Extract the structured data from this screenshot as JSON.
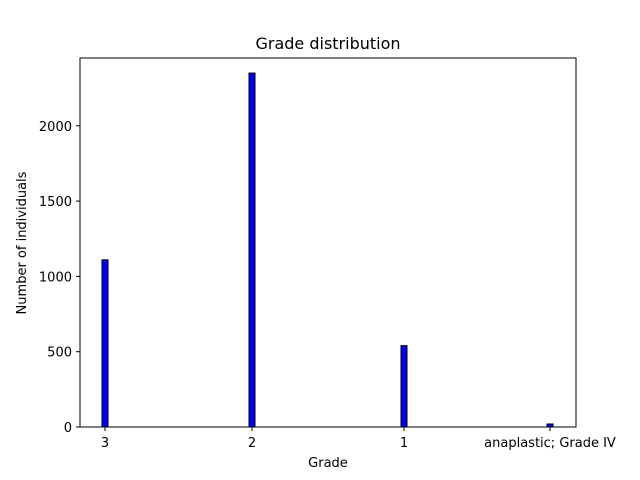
{
  "chart_data": {
    "type": "bar",
    "title": "Grade distribution",
    "xlabel": "Grade",
    "ylabel": "Number of individuals",
    "categories": [
      "3",
      "2",
      "1",
      "anaplastic; Grade IV"
    ],
    "values": [
      1110,
      2350,
      540,
      20
    ],
    "ylim": [
      0,
      2450
    ],
    "yticks": [
      0,
      500,
      1000,
      1500,
      2000
    ],
    "grid": false,
    "bar_color": "#0000ff",
    "bar_edge_color": "#000000"
  }
}
